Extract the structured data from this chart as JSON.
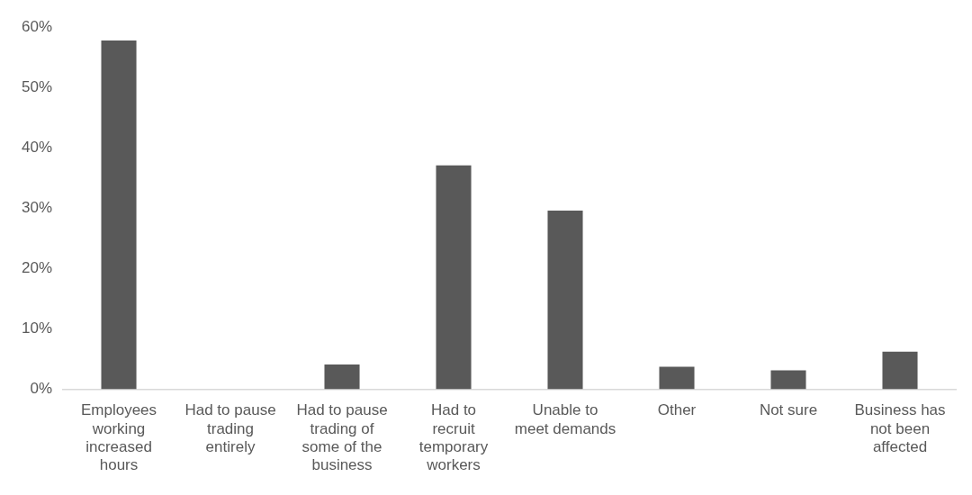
{
  "chart_data": {
    "type": "bar",
    "categories": [
      "Employees working increased hours",
      "Had to pause trading entirely",
      "Had to pause trading of some of the business",
      "Had to recruit temporary workers",
      "Unable to meet demands",
      "Other",
      "Not sure",
      "Business has not been affected"
    ],
    "values": [
      57.8,
      0,
      4.1,
      37.1,
      29.6,
      3.7,
      3.1,
      6.2
    ],
    "color": "#595959",
    "ylim": [
      0,
      60
    ],
    "yticks": [
      {
        "value": 0,
        "label": "0%"
      },
      {
        "value": 10,
        "label": "10%"
      },
      {
        "value": 20,
        "label": "20%"
      },
      {
        "value": 30,
        "label": "30%"
      },
      {
        "value": 40,
        "label": "40%"
      },
      {
        "value": 50,
        "label": "50%"
      },
      {
        "value": 60,
        "label": "60%"
      }
    ],
    "grid": false,
    "legend": false
  }
}
